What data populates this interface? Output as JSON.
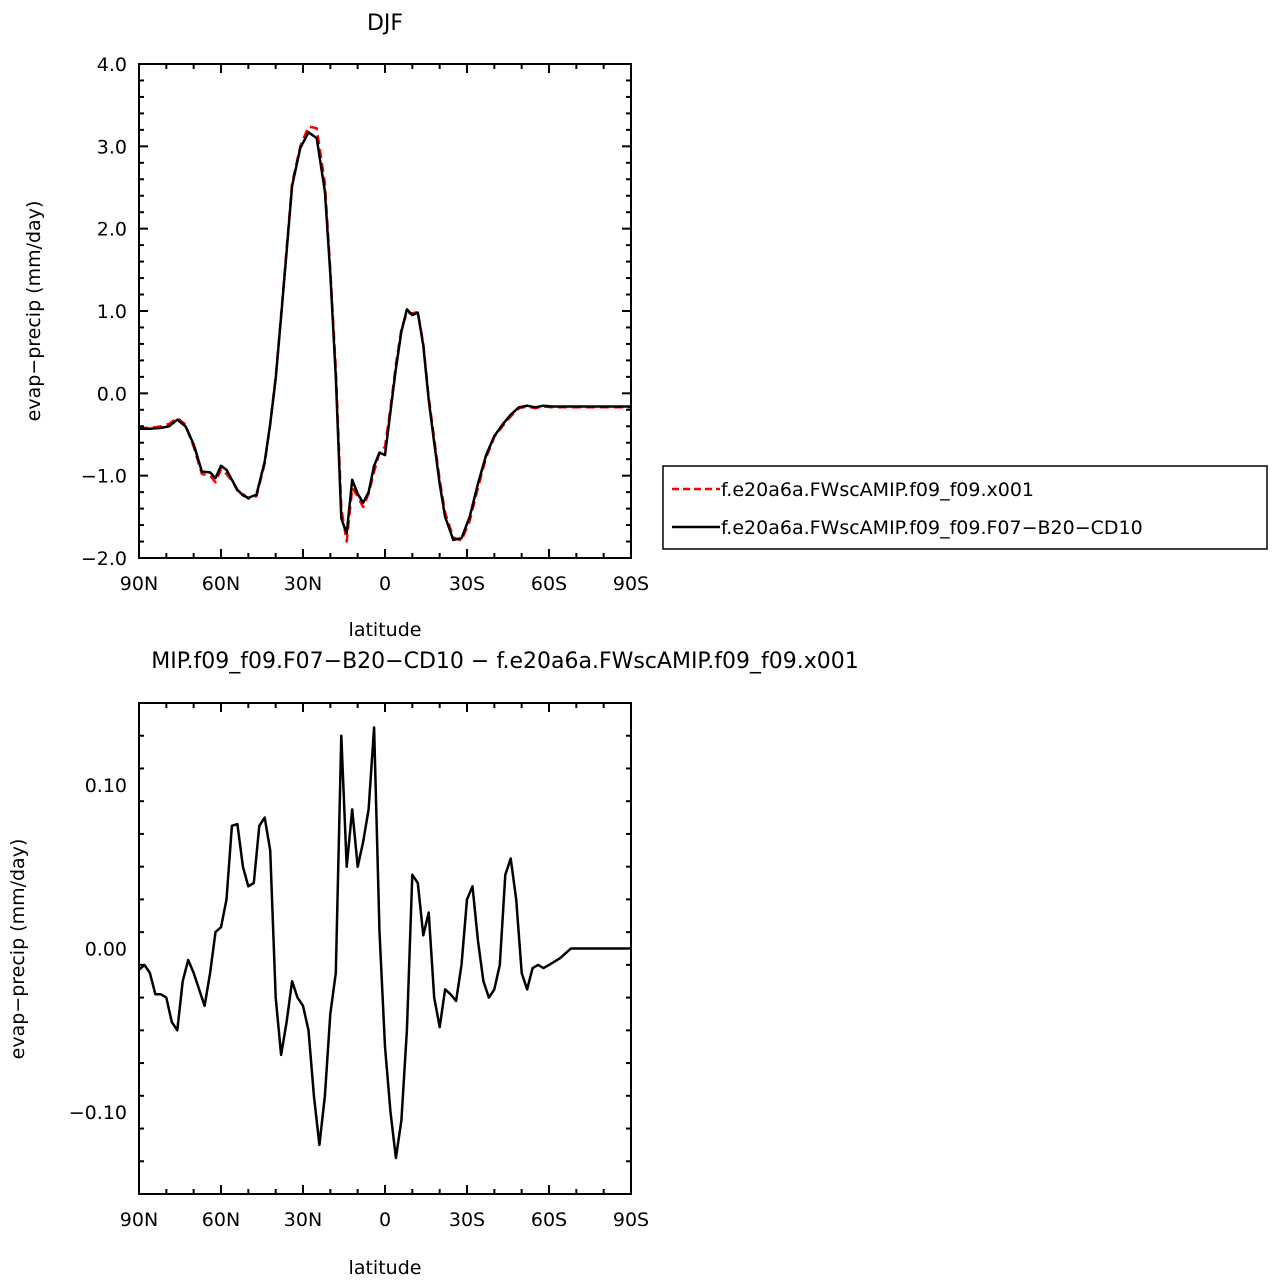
{
  "chart_data": [
    {
      "type": "line",
      "title": "DJF",
      "xlabel": "latitude",
      "ylabel": "evap−precip (mm/day)",
      "x_direction": "north-to-south",
      "xlim": [
        90,
        -90
      ],
      "ylim": [
        -2.0,
        4.0
      ],
      "x_ticks": [
        90,
        60,
        30,
        0,
        -30,
        -60,
        -90
      ],
      "x_tick_labels": [
        "90N",
        "60N",
        "30N",
        "0",
        "30S",
        "60S",
        "90S"
      ],
      "y_ticks": [
        4.0,
        3.0,
        2.0,
        1.0,
        0.0,
        -1.0,
        -2.0
      ],
      "y_tick_labels": [
        "4.0",
        "3.0",
        "2.0",
        "1.0",
        "0.0",
        "−1.0",
        "−2.0"
      ],
      "legend_position": "right",
      "x": [
        90,
        86,
        82,
        79,
        76,
        73,
        70,
        67,
        64,
        62,
        60,
        58,
        56,
        54,
        52,
        50,
        47,
        44,
        42,
        40,
        38,
        36,
        34,
        31,
        28,
        25,
        22,
        20,
        18,
        16,
        14,
        12,
        10,
        8,
        6,
        4,
        2,
        0,
        -2,
        -4,
        -6,
        -8,
        -10,
        -12,
        -14,
        -16,
        -18,
        -20,
        -22,
        -25,
        -28,
        -31,
        -34,
        -37,
        -40,
        -43,
        -46,
        -49,
        -52,
        -55,
        -58,
        -61,
        -64,
        -67,
        -70,
        -73,
        -76,
        -79,
        -82,
        -85,
        -88,
        -90
      ],
      "series": [
        {
          "name": "f.e20a6a.FWscAMIP.f09_f09.x001",
          "color": "#ff0000",
          "style": "dashed",
          "values": [
            -0.42,
            -0.42,
            -0.4,
            -0.37,
            -0.3,
            -0.38,
            -0.65,
            -0.98,
            -1.0,
            -1.08,
            -0.92,
            -0.98,
            -1.06,
            -1.18,
            -1.22,
            -1.28,
            -1.25,
            -0.85,
            -0.38,
            0.2,
            0.95,
            1.75,
            2.55,
            3.0,
            3.24,
            3.22,
            2.55,
            1.5,
            0.3,
            -1.4,
            -1.8,
            -1.15,
            -1.25,
            -1.38,
            -1.22,
            -0.95,
            -0.72,
            -0.65,
            -0.18,
            0.35,
            0.78,
            0.98,
            0.97,
            0.99,
            0.6,
            -0.05,
            -0.55,
            -1.05,
            -1.45,
            -1.75,
            -1.79,
            -1.55,
            -1.15,
            -0.78,
            -0.53,
            -0.4,
            -0.28,
            -0.18,
            -0.16,
            -0.18,
            -0.16,
            -0.17,
            -0.17,
            -0.17,
            -0.17,
            -0.17,
            -0.17,
            -0.17,
            -0.17,
            -0.17,
            -0.17,
            -0.17
          ]
        },
        {
          "name": "f.e20a6a.FWscAMIP.f09_f09.F07−B20−CD10",
          "color": "#000000",
          "style": "solid",
          "values": [
            -0.43,
            -0.43,
            -0.42,
            -0.4,
            -0.32,
            -0.4,
            -0.62,
            -0.95,
            -0.96,
            -1.03,
            -0.88,
            -0.93,
            -1.05,
            -1.17,
            -1.24,
            -1.27,
            -1.23,
            -0.83,
            -0.37,
            0.18,
            0.93,
            1.72,
            2.52,
            2.98,
            3.17,
            3.1,
            2.45,
            1.45,
            0.2,
            -1.52,
            -1.7,
            -1.05,
            -1.22,
            -1.33,
            -1.2,
            -0.88,
            -0.72,
            -0.75,
            -0.22,
            0.3,
            0.75,
            1.02,
            0.95,
            0.98,
            0.58,
            -0.08,
            -0.6,
            -1.1,
            -1.5,
            -1.78,
            -1.76,
            -1.5,
            -1.1,
            -0.75,
            -0.52,
            -0.38,
            -0.26,
            -0.17,
            -0.15,
            -0.17,
            -0.15,
            -0.16,
            -0.16,
            -0.16,
            -0.16,
            -0.16,
            -0.16,
            -0.16,
            -0.16,
            -0.16,
            -0.16,
            -0.16
          ]
        }
      ]
    },
    {
      "type": "line",
      "title": "MIP.f09_f09.F07−B20−CD10 − f.e20a6a.FWscAMIP.f09_f09.x001",
      "xlabel": "latitude",
      "ylabel": "evap−precip (mm/day)",
      "x_direction": "north-to-south",
      "xlim": [
        90,
        -90
      ],
      "ylim": [
        -0.15,
        0.15
      ],
      "x_ticks": [
        90,
        60,
        30,
        0,
        -30,
        -60,
        -90
      ],
      "x_tick_labels": [
        "90N",
        "60N",
        "30N",
        "0",
        "30S",
        "60S",
        "90S"
      ],
      "y_ticks": [
        0.1,
        0.0,
        -0.1
      ],
      "y_tick_labels": [
        "0.10",
        "0.00",
        "−0.10"
      ],
      "x": [
        90,
        88,
        86,
        84,
        82,
        80,
        78,
        76,
        74,
        72,
        70,
        68,
        66,
        64,
        62,
        60,
        58,
        56,
        54,
        52,
        50,
        48,
        46,
        44,
        42,
        40,
        38,
        36,
        34,
        32,
        30,
        28,
        26,
        24,
        22,
        20,
        18,
        16,
        14,
        12,
        10,
        8,
        6,
        4,
        2,
        0,
        -2,
        -4,
        -6,
        -8,
        -10,
        -12,
        -14,
        -16,
        -18,
        -20,
        -22,
        -24,
        -26,
        -28,
        -30,
        -32,
        -34,
        -36,
        -38,
        -40,
        -42,
        -44,
        -46,
        -48,
        -50,
        -52,
        -54,
        -56,
        -58,
        -60,
        -62,
        -64,
        -66,
        -68,
        -70,
        -72,
        -74,
        -76,
        -78,
        -80,
        -82,
        -84,
        -86,
        -88,
        -90
      ],
      "series": [
        {
          "name": "",
          "color": "#000000",
          "style": "solid",
          "values": [
            -0.013,
            -0.01,
            -0.015,
            -0.028,
            -0.028,
            -0.03,
            -0.045,
            -0.05,
            -0.02,
            -0.007,
            -0.015,
            -0.025,
            -0.035,
            -0.015,
            0.01,
            0.013,
            0.03,
            0.075,
            0.076,
            0.05,
            0.038,
            0.04,
            0.075,
            0.08,
            0.06,
            -0.03,
            -0.065,
            -0.045,
            -0.02,
            -0.03,
            -0.035,
            -0.05,
            -0.09,
            -0.12,
            -0.09,
            -0.04,
            -0.015,
            0.13,
            0.05,
            0.085,
            0.05,
            0.065,
            0.085,
            0.135,
            0.01,
            -0.06,
            -0.1,
            -0.128,
            -0.105,
            -0.05,
            0.045,
            0.04,
            0.008,
            0.022,
            -0.03,
            -0.048,
            -0.025,
            -0.028,
            -0.032,
            -0.01,
            0.03,
            0.038,
            0.005,
            -0.02,
            -0.03,
            -0.025,
            -0.01,
            0.045,
            0.055,
            0.03,
            -0.015,
            -0.025,
            -0.012,
            -0.01,
            -0.012,
            -0.01,
            -0.008,
            -0.006,
            -0.003,
            0.0,
            0.0,
            0.0,
            0.0,
            0.0,
            0.0,
            0.0,
            0.0,
            0.0,
            0.0,
            0.0,
            0.0
          ]
        }
      ]
    }
  ]
}
